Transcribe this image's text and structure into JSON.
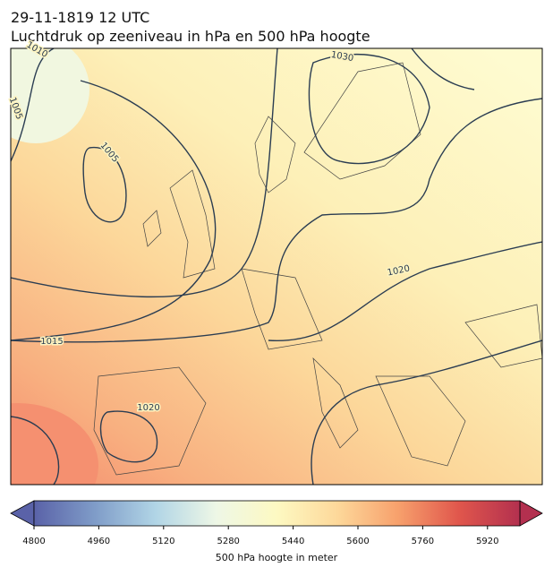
{
  "header": {
    "title_line1": "29-11-1819 12 UTC",
    "title_line2": "Luchtdruk op zeeniveau in hPa en 500 hPa hoogte"
  },
  "isobar_labels": [
    "1010",
    "1005",
    "1005",
    "1030",
    "1020",
    "1015",
    "1020"
  ],
  "colorbar": {
    "label": "500 hPa hoogte in meter",
    "lim": [
      4800,
      6000
    ],
    "ticks": [
      4800,
      4960,
      5120,
      5280,
      5440,
      5600,
      5760,
      5920
    ],
    "colormap": [
      "#5a62a8",
      "#7f9cc8",
      "#b1d5e6",
      "#eef7e6",
      "#fdf9c2",
      "#fdd89a",
      "#f7a06c",
      "#e0564c",
      "#b3304f"
    ]
  }
}
